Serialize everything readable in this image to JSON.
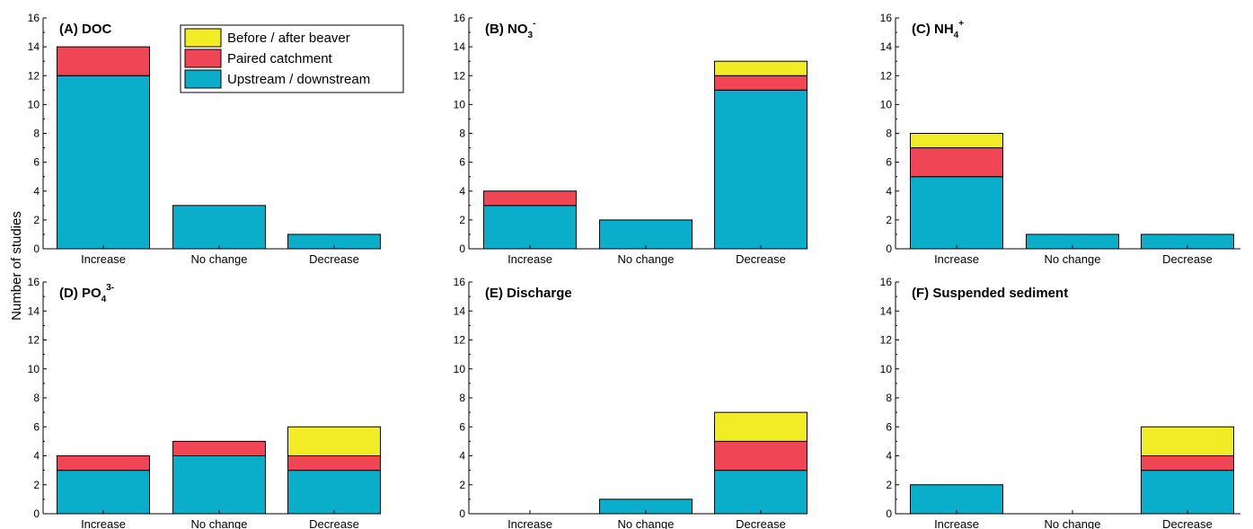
{
  "y_axis_title": "Number of studies",
  "colors": {
    "Before / after beaver": "#f2ec26",
    "Paired catchment": "#ef4555",
    "Upstream / downstream": "#0aaecb",
    "stroke": "#000000"
  },
  "legend": {
    "placement": "top-right of panel A",
    "entries": [
      "Before / after beaver",
      "Paired catchment",
      "Upstream / downstream"
    ]
  },
  "chart_data": [
    {
      "type": "bar",
      "stacked": true,
      "title": {
        "text": "(A) DOC",
        "sub": "",
        "sup": ""
      },
      "categories": [
        "Increase",
        "No change",
        "Decrease"
      ],
      "ylim": [
        0,
        16
      ],
      "yticks": [
        0,
        2,
        4,
        6,
        8,
        10,
        12,
        14,
        16
      ],
      "series": [
        {
          "name": "Upstream / downstream",
          "values": [
            12,
            3,
            1
          ]
        },
        {
          "name": "Paired catchment",
          "values": [
            2,
            0,
            0
          ]
        },
        {
          "name": "Before / after beaver",
          "values": [
            0,
            0,
            0
          ]
        }
      ]
    },
    {
      "type": "bar",
      "stacked": true,
      "title": {
        "text": "(B) NO",
        "sub": "3",
        "sup": "-"
      },
      "categories": [
        "Increase",
        "No change",
        "Decrease"
      ],
      "ylim": [
        0,
        16
      ],
      "yticks": [
        0,
        2,
        4,
        6,
        8,
        10,
        12,
        14,
        16
      ],
      "series": [
        {
          "name": "Upstream / downstream",
          "values": [
            3,
            2,
            11
          ]
        },
        {
          "name": "Paired catchment",
          "values": [
            1,
            0,
            1
          ]
        },
        {
          "name": "Before / after beaver",
          "values": [
            0,
            0,
            1
          ]
        }
      ]
    },
    {
      "type": "bar",
      "stacked": true,
      "title": {
        "text": "(C) NH",
        "sub": "4",
        "sup": "+"
      },
      "categories": [
        "Increase",
        "No change",
        "Decrease"
      ],
      "ylim": [
        0,
        16
      ],
      "yticks": [
        0,
        2,
        4,
        6,
        8,
        10,
        12,
        14,
        16
      ],
      "series": [
        {
          "name": "Upstream / downstream",
          "values": [
            5,
            1,
            1
          ]
        },
        {
          "name": "Paired catchment",
          "values": [
            2,
            0,
            0
          ]
        },
        {
          "name": "Before / after beaver",
          "values": [
            1,
            0,
            0
          ]
        }
      ]
    },
    {
      "type": "bar",
      "stacked": true,
      "title": {
        "text": "(D) PO",
        "sub": "4",
        "sup": "3-"
      },
      "categories": [
        "Increase",
        "No change",
        "Decrease"
      ],
      "ylim": [
        0,
        16
      ],
      "yticks": [
        0,
        2,
        4,
        6,
        8,
        10,
        12,
        14,
        16
      ],
      "series": [
        {
          "name": "Upstream / downstream",
          "values": [
            3,
            4,
            3
          ]
        },
        {
          "name": "Paired catchment",
          "values": [
            1,
            1,
            1
          ]
        },
        {
          "name": "Before / after beaver",
          "values": [
            0,
            0,
            2
          ]
        }
      ]
    },
    {
      "type": "bar",
      "stacked": true,
      "title": {
        "text": "(E) Discharge",
        "sub": "",
        "sup": ""
      },
      "categories": [
        "Increase",
        "No change",
        "Decrease"
      ],
      "ylim": [
        0,
        16
      ],
      "yticks": [
        0,
        2,
        4,
        6,
        8,
        10,
        12,
        14,
        16
      ],
      "series": [
        {
          "name": "Upstream / downstream",
          "values": [
            0,
            1,
            3
          ]
        },
        {
          "name": "Paired catchment",
          "values": [
            0,
            0,
            2
          ]
        },
        {
          "name": "Before / after beaver",
          "values": [
            0,
            0,
            2
          ]
        }
      ]
    },
    {
      "type": "bar",
      "stacked": true,
      "title": {
        "text": "(F) Suspended sediment",
        "sub": "",
        "sup": ""
      },
      "categories": [
        "Increase",
        "No change",
        "Decrease"
      ],
      "ylim": [
        0,
        16
      ],
      "yticks": [
        0,
        2,
        4,
        6,
        8,
        10,
        12,
        14,
        16
      ],
      "series": [
        {
          "name": "Upstream / downstream",
          "values": [
            2,
            0,
            3
          ]
        },
        {
          "name": "Paired catchment",
          "values": [
            0,
            0,
            1
          ]
        },
        {
          "name": "Before / after beaver",
          "values": [
            0,
            0,
            2
          ]
        }
      ]
    }
  ]
}
